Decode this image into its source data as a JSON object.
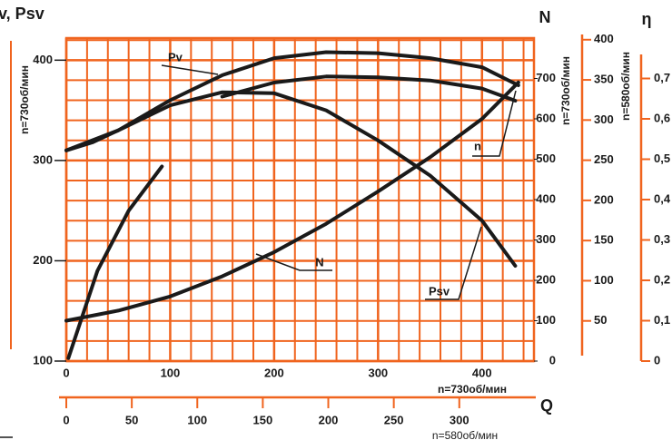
{
  "chart_data": {
    "type": "line",
    "color": "#1a1a1a",
    "axis_color": "#f0641e",
    "grid": true,
    "x_label": "Q",
    "x_speed_label": "n=730об/мин",
    "x2_speed_label": "n=580об/мин",
    "y_label": "Pv, Psv",
    "y_speed_label": "n=730об/мин",
    "y2_label": "N",
    "y3_speed_label": "n=730об/мин",
    "y4_speed_label": "n=580об/мин",
    "y4_label": "η",
    "xlim": [
      0,
      450
    ],
    "xticks": [
      0,
      100,
      200,
      300,
      400
    ],
    "x2lim": [
      0,
      357
    ],
    "x2ticks": [
      0,
      50,
      100,
      150,
      200,
      250,
      300
    ],
    "ylim": [
      100,
      422
    ],
    "yticks": [
      100,
      200,
      300,
      400
    ],
    "y2lim": [
      0,
      800
    ],
    "y2ticks": [
      0,
      100,
      200,
      300,
      400,
      500,
      600,
      700
    ],
    "y3lim": [
      0,
      402
    ],
    "y3ticks": [
      50,
      100,
      150,
      200,
      250,
      300,
      350,
      400
    ],
    "y4lim": [
      0,
      0.8
    ],
    "y4ticks": [
      0,
      {
        "value": 0.1,
        "label": "0,1"
      },
      {
        "value": 0.3,
        "label": "0,3"
      },
      {
        "value": 0.5,
        "label": "0,5"
      },
      {
        "value": 0.6,
        "label": "0,6"
      },
      {
        "value": 0.7,
        "label": "0,7"
      },
      {
        "value": 0.2,
        "label": "0,2"
      },
      {
        "value": 0.4,
        "label": "0,4"
      }
    ],
    "series": [
      {
        "name": "Pv",
        "axis": "y",
        "x": [
          0,
          25,
          50,
          75,
          100,
          150,
          200,
          250,
          300,
          350,
          400,
          435
        ],
        "values": [
          310,
          318,
          330,
          345,
          360,
          385,
          402,
          408,
          407,
          402,
          393,
          375
        ]
      },
      {
        "name": "Psv",
        "axis": "y",
        "x": [
          0,
          50,
          100,
          150,
          200,
          250,
          300,
          350,
          400,
          432
        ],
        "values": [
          310,
          330,
          355,
          368,
          367,
          350,
          320,
          285,
          240,
          195
        ]
      },
      {
        "name": "N",
        "axis": "y2",
        "x": [
          0,
          50,
          100,
          150,
          200,
          250,
          300,
          350,
          400,
          435
        ],
        "values": [
          100,
          125,
          160,
          210,
          270,
          340,
          420,
          505,
          600,
          690
        ]
      },
      {
        "name": "n",
        "axis": "y4",
        "x": [
          150,
          200,
          250,
          300,
          350,
          400,
          432
        ],
        "values": [
          0.655,
          0.69,
          0.705,
          0.703,
          0.695,
          0.675,
          0.645
        ]
      },
      {
        "axis": "y",
        "x": [
          2,
          30,
          60,
          92
        ],
        "values": [
          103,
          190,
          250,
          294
        ]
      }
    ]
  }
}
